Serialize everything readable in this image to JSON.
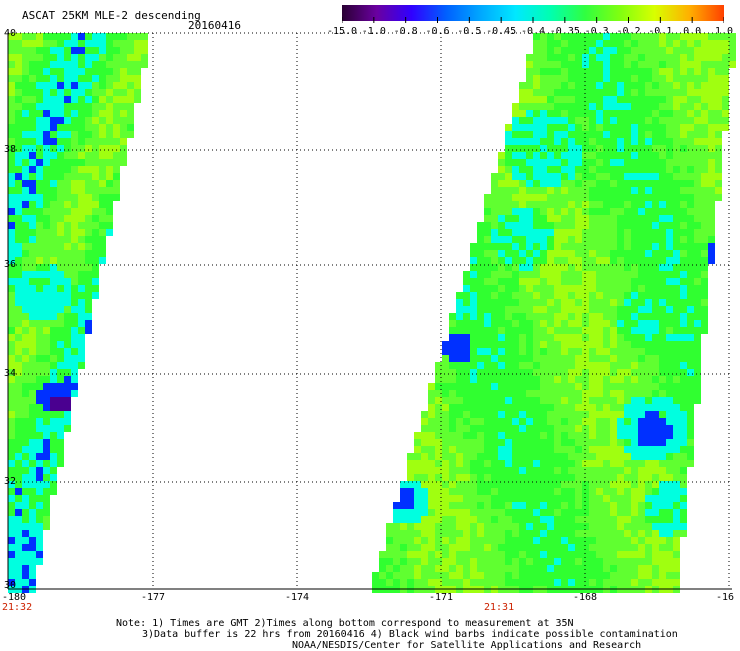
{
  "header": {
    "title": "ASCAT 25KM MLE-2 descending",
    "date": "20160416"
  },
  "colorbar": {
    "labels": [
      "-15.0",
      "-1.0",
      "-0.8",
      "-0.6",
      "-0.5",
      "-0.45",
      "-0.4",
      "-0.35",
      "-0.3",
      "-0.2",
      "-0.1",
      "0.0",
      "1.0"
    ],
    "colors": [
      "#2a0033",
      "#6a00a0",
      "#3000ff",
      "#0060ff",
      "#00a8ff",
      "#00e8ff",
      "#00ffb0",
      "#30ff40",
      "#80ff10",
      "#d8ff00",
      "#ffb000",
      "#ff4000"
    ]
  },
  "axes": {
    "lon_labels": [
      "-180",
      "-177",
      "-174",
      "-171",
      "-168",
      "-16"
    ],
    "lat_labels": [
      "40",
      "38",
      "36",
      "34",
      "32",
      "30"
    ]
  },
  "times": {
    "left": "21:32",
    "right": "21:31"
  },
  "notes": {
    "line1": "Note: 1) Times are GMT 2)Times along bottom correspond to measurement at 35N",
    "line2": "3)Data buffer is 22 hrs from 20160416 4) Black wind barbs indicate possible contamination",
    "line3": "NOAA/NESDIS/Center for Satellite Applications and Research"
  },
  "palette": {
    "green": "#30ff30",
    "yellowgreen": "#a0ff10",
    "cyan": "#00ffe0",
    "blue": "#0030ff",
    "purple": "#4a0090",
    "lightgreen": "#60ff30"
  }
}
